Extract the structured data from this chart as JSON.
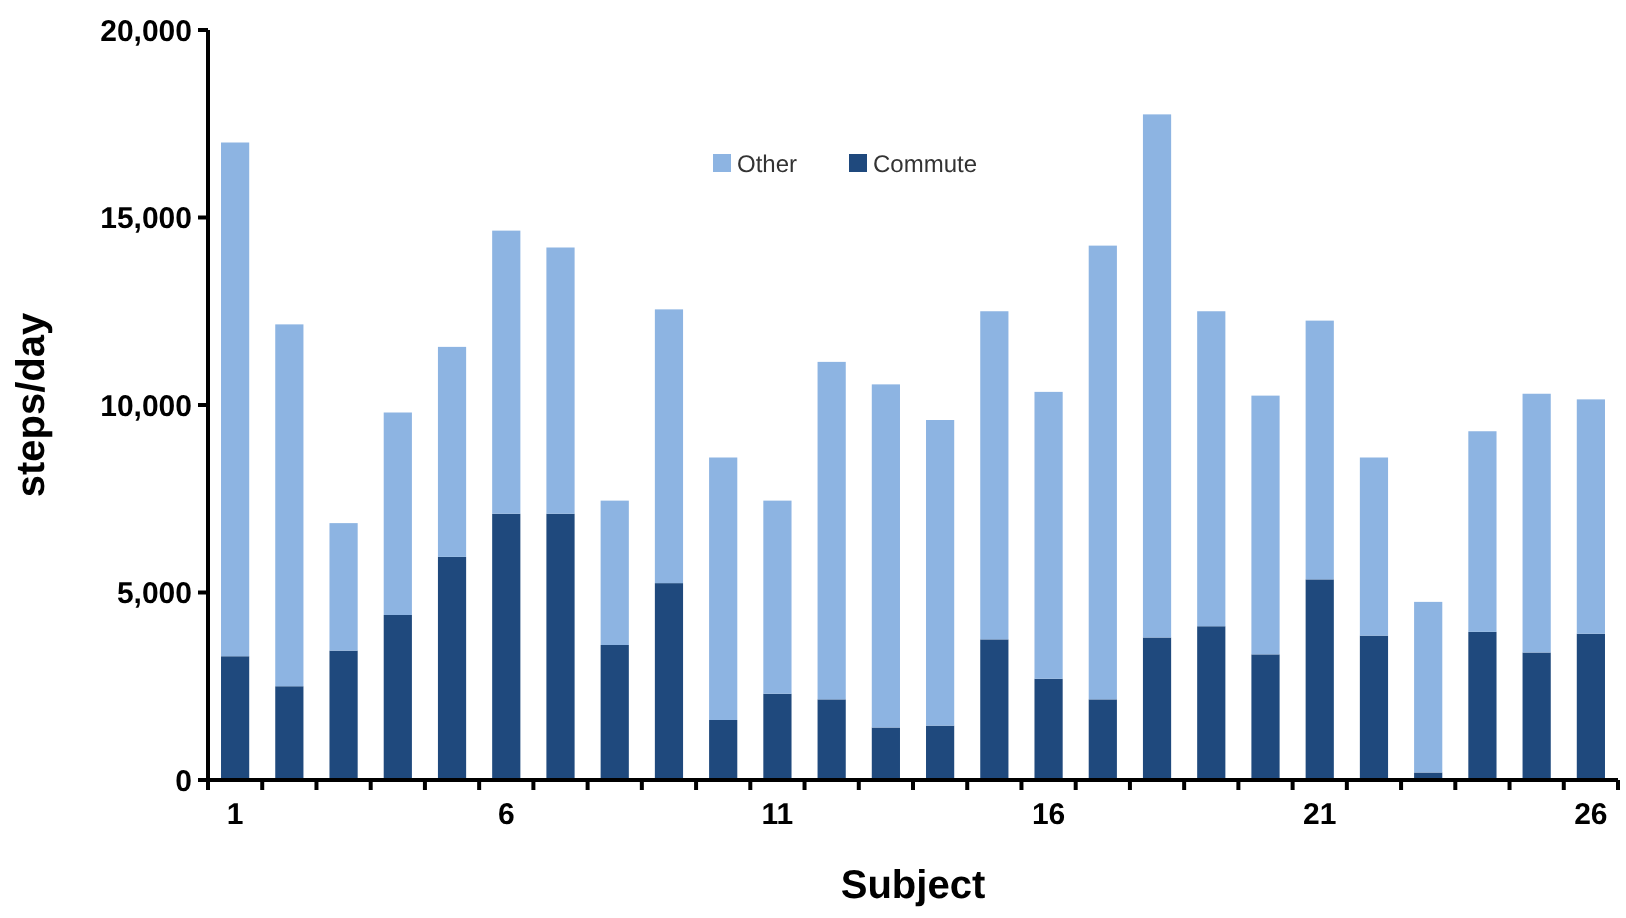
{
  "chart_data": {
    "type": "bar",
    "stacked": true,
    "xlabel": "Subject",
    "ylabel": "steps/day",
    "categories": [
      "1",
      null,
      null,
      null,
      null,
      "6",
      null,
      null,
      null,
      null,
      "11",
      null,
      null,
      null,
      null,
      "16",
      null,
      null,
      null,
      null,
      "21",
      null,
      null,
      null,
      null,
      "26"
    ],
    "series": [
      {
        "name": "Commute",
        "color": "#1f497d",
        "values": [
          3300,
          2500,
          3450,
          4400,
          5950,
          7100,
          7100,
          3600,
          5250,
          1600,
          2300,
          2150,
          1400,
          1450,
          3750,
          2700,
          2150,
          3800,
          4100,
          3350,
          5350,
          3850,
          200,
          3950,
          3400,
          3900
        ]
      },
      {
        "name": "Other",
        "color": "#8db4e2",
        "values": [
          13700,
          9650,
          3400,
          5400,
          5600,
          7550,
          7100,
          3850,
          7300,
          7000,
          5150,
          9000,
          9150,
          8150,
          8750,
          7650,
          12100,
          13950,
          8400,
          6900,
          6900,
          4750,
          4550,
          5350,
          6900,
          6250
        ]
      }
    ],
    "ylim": [
      0,
      20000
    ],
    "yticks": [
      {
        "value": 0,
        "label": "0"
      },
      {
        "value": 5000,
        "label": "5,000"
      },
      {
        "value": 10000,
        "label": "10,000"
      },
      {
        "value": 15000,
        "label": "15,000"
      },
      {
        "value": 20000,
        "label": "20,000"
      }
    ],
    "legend": "top"
  }
}
